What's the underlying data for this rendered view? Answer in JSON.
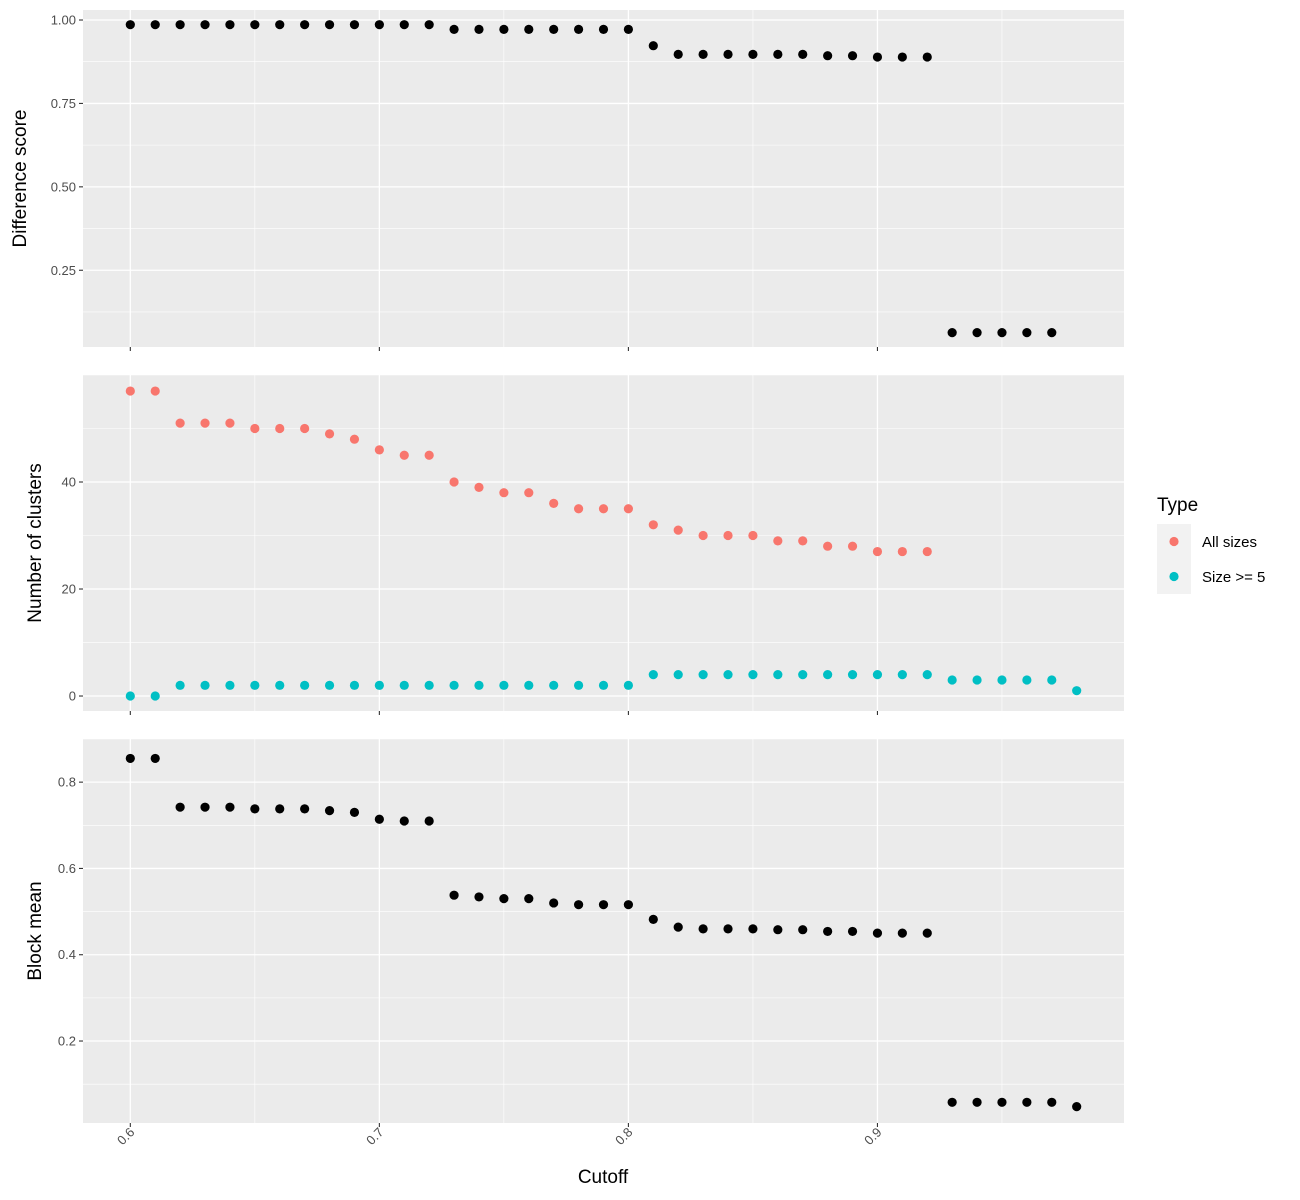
{
  "chart_data": [
    {
      "type": "scatter",
      "ylabel": "Difference score",
      "x": [
        0.6,
        0.61,
        0.62,
        0.63,
        0.64,
        0.65,
        0.66,
        0.67,
        0.68,
        0.69,
        0.7,
        0.71,
        0.72,
        0.73,
        0.74,
        0.75,
        0.76,
        0.77,
        0.78,
        0.79,
        0.8,
        0.81,
        0.82,
        0.83,
        0.84,
        0.85,
        0.86,
        0.87,
        0.88,
        0.89,
        0.9,
        0.91,
        0.92,
        0.93,
        0.94,
        0.95,
        0.96,
        0.97
      ],
      "series": [
        {
          "color": "#000000",
          "values": [
            0.986,
            0.986,
            0.986,
            0.986,
            0.986,
            0.986,
            0.986,
            0.986,
            0.986,
            0.986,
            0.986,
            0.986,
            0.986,
            0.972,
            0.972,
            0.972,
            0.972,
            0.972,
            0.972,
            0.972,
            0.972,
            0.923,
            0.897,
            0.897,
            0.897,
            0.897,
            0.897,
            0.897,
            0.893,
            0.893,
            0.889,
            0.889,
            0.889,
            0.063,
            0.063,
            0.063,
            0.063,
            0.063
          ]
        }
      ],
      "ylim": [
        0.02,
        1.03
      ],
      "yticks": [
        0.25,
        0.5,
        0.75,
        1.0
      ],
      "yticklabels": [
        "0.25",
        "0.50",
        "0.75",
        "1.00"
      ]
    },
    {
      "type": "scatter",
      "ylabel": "Number of clusters",
      "series": [
        {
          "name": "All sizes",
          "color": "#F8766D",
          "x": [
            0.6,
            0.61,
            0.62,
            0.63,
            0.64,
            0.65,
            0.66,
            0.67,
            0.68,
            0.69,
            0.7,
            0.71,
            0.72,
            0.73,
            0.74,
            0.75,
            0.76,
            0.77,
            0.78,
            0.79,
            0.8,
            0.81,
            0.82,
            0.83,
            0.84,
            0.85,
            0.86,
            0.87,
            0.88,
            0.89,
            0.9,
            0.91,
            0.92
          ],
          "values": [
            57,
            57,
            51,
            51,
            51,
            50,
            50,
            50,
            49,
            48,
            46,
            45,
            45,
            40,
            39,
            38,
            38,
            36,
            35,
            35,
            35,
            32,
            31,
            30,
            30,
            30,
            29,
            29,
            28,
            28,
            27,
            27,
            27
          ]
        },
        {
          "name": "Size >= 5",
          "color": "#00BFC4",
          "x": [
            0.6,
            0.61,
            0.62,
            0.63,
            0.64,
            0.65,
            0.66,
            0.67,
            0.68,
            0.69,
            0.7,
            0.71,
            0.72,
            0.73,
            0.74,
            0.75,
            0.76,
            0.77,
            0.78,
            0.79,
            0.8,
            0.81,
            0.82,
            0.83,
            0.84,
            0.85,
            0.86,
            0.87,
            0.88,
            0.89,
            0.9,
            0.91,
            0.92,
            0.93,
            0.94,
            0.95,
            0.96,
            0.97,
            0.98
          ],
          "values": [
            0,
            0,
            2,
            2,
            2,
            2,
            2,
            2,
            2,
            2,
            2,
            2,
            2,
            2,
            2,
            2,
            2,
            2,
            2,
            2,
            2,
            4,
            4,
            4,
            4,
            4,
            4,
            4,
            4,
            4,
            4,
            4,
            4,
            3,
            3,
            3,
            3,
            3,
            1
          ]
        }
      ],
      "ylim": [
        -2.8,
        60.0
      ],
      "yticks": [
        0,
        20,
        40
      ],
      "yticklabels": [
        "0",
        "20",
        "40"
      ]
    },
    {
      "type": "scatter",
      "ylabel": "Block mean",
      "x": [
        0.6,
        0.61,
        0.62,
        0.63,
        0.64,
        0.65,
        0.66,
        0.67,
        0.68,
        0.69,
        0.7,
        0.71,
        0.72,
        0.73,
        0.74,
        0.75,
        0.76,
        0.77,
        0.78,
        0.79,
        0.8,
        0.81,
        0.82,
        0.83,
        0.84,
        0.85,
        0.86,
        0.87,
        0.88,
        0.89,
        0.9,
        0.91,
        0.92,
        0.93,
        0.94,
        0.95,
        0.96,
        0.97,
        0.98
      ],
      "series": [
        {
          "color": "#000000",
          "values": [
            0.855,
            0.855,
            0.742,
            0.742,
            0.742,
            0.738,
            0.738,
            0.738,
            0.734,
            0.73,
            0.714,
            0.71,
            0.71,
            0.538,
            0.534,
            0.53,
            0.53,
            0.52,
            0.516,
            0.516,
            0.516,
            0.482,
            0.464,
            0.46,
            0.46,
            0.46,
            0.458,
            0.458,
            0.454,
            0.454,
            0.45,
            0.45,
            0.45,
            0.058,
            0.058,
            0.058,
            0.058,
            0.058,
            0.048
          ]
        }
      ],
      "ylim": [
        0.01,
        0.9
      ],
      "yticks": [
        0.2,
        0.4,
        0.6,
        0.8
      ],
      "yticklabels": [
        "0.2",
        "0.4",
        "0.6",
        "0.8"
      ]
    }
  ],
  "shared_x": {
    "xlabel": "Cutoff",
    "xlim": [
      0.581,
      0.999
    ],
    "xticks": [
      0.6,
      0.7,
      0.8,
      0.9
    ],
    "xticklabels": [
      "0.6",
      "0.7",
      "0.8",
      "0.9"
    ]
  },
  "legend": {
    "title": "Type",
    "placement": "right",
    "entries": [
      {
        "label": "All sizes",
        "color": "#F8766D"
      },
      {
        "label": "Size >= 5",
        "color": "#00BFC4"
      }
    ]
  },
  "style": {
    "panel_background": "#EBEBEB",
    "grid_color": "#FFFFFF",
    "legend_key_background": "#F2F2F2"
  }
}
